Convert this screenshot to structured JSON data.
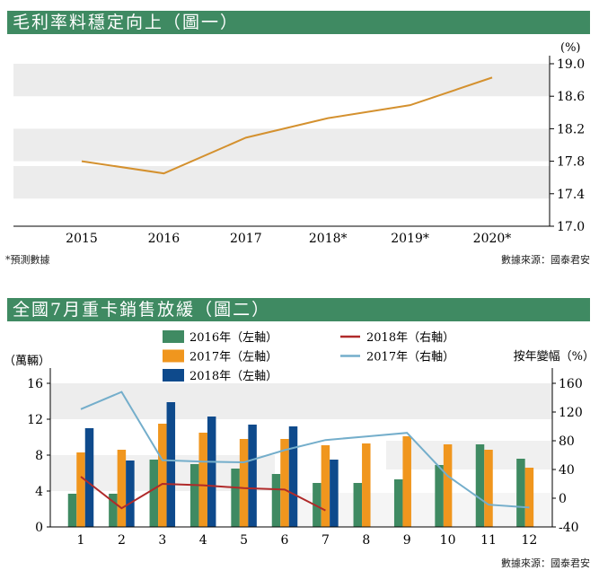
{
  "chart_data": [
    {
      "type": "line",
      "title": "毛利率料穩定向上（圖一）",
      "unit_label": "(%)",
      "categories": [
        "2015",
        "2016",
        "2017",
        "2018*",
        "2019*",
        "2020*"
      ],
      "series": [
        {
          "name": "毛利率",
          "values": [
            17.8,
            17.65,
            18.09,
            18.33,
            18.49,
            18.83
          ],
          "color": "#d4912f"
        }
      ],
      "yaxis": {
        "side": "right",
        "range": [
          17.0,
          19.0
        ],
        "ticks": [
          "17.0",
          "17.4",
          "17.8",
          "18.2",
          "18.6",
          "19.0"
        ]
      },
      "footnote": "*預測數據",
      "source": "數據來源：國泰君安"
    },
    {
      "type": "bar",
      "title": "全國7月重卡銷售放緩（圖二）",
      "left_axis_label": "（萬輛）",
      "right_axis_label": "按年變幅（%）",
      "categories": [
        "1",
        "2",
        "3",
        "4",
        "5",
        "6",
        "7",
        "8",
        "9",
        "10",
        "11",
        "12"
      ],
      "left_axis": {
        "range": [
          0,
          16
        ],
        "ticks": [
          "0",
          "4",
          "8",
          "12",
          "16"
        ]
      },
      "right_axis": {
        "range": [
          -40,
          160
        ],
        "ticks": [
          "-40",
          "0",
          "40",
          "80",
          "120",
          "160"
        ]
      },
      "bar_series": [
        {
          "name": "2016年（左軸）",
          "color": "#3f8a62",
          "values": [
            3.7,
            3.7,
            7.5,
            7.0,
            6.5,
            5.9,
            4.9,
            4.9,
            5.3,
            6.9,
            9.2,
            7.6
          ]
        },
        {
          "name": "2017年（左軸）",
          "color": "#f0961e",
          "values": [
            8.3,
            8.6,
            11.5,
            10.5,
            9.8,
            9.8,
            9.1,
            9.3,
            10.1,
            9.2,
            8.6,
            6.6
          ]
        },
        {
          "name": "2018年（左軸）",
          "color": "#0e4a8c",
          "values": [
            11.0,
            7.4,
            13.9,
            12.3,
            11.4,
            11.2,
            7.5,
            null,
            null,
            null,
            null,
            null
          ]
        }
      ],
      "line_series": [
        {
          "name": "2018年（右軸）",
          "color": "#b02a2a",
          "values": [
            30,
            -14,
            20,
            18,
            14,
            12,
            -17,
            null,
            null,
            null,
            null,
            null
          ]
        },
        {
          "name": "2017年（右軸）",
          "color": "#74aecb",
          "values": [
            124,
            148,
            53,
            51,
            50,
            67,
            81,
            86,
            91,
            31,
            -9,
            -13
          ]
        }
      ],
      "source": "數據來源：國泰君安"
    }
  ]
}
